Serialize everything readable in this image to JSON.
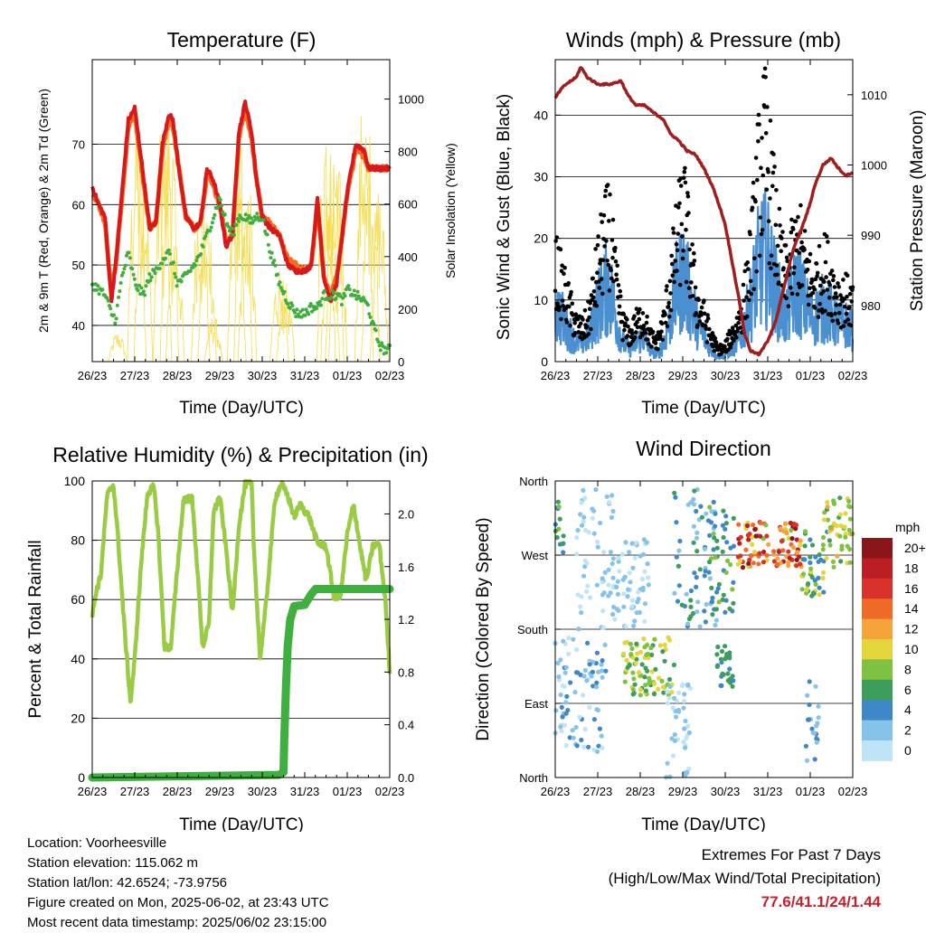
{
  "colors": {
    "temp2m": "#d7191c",
    "temp9m": "#f46d1f",
    "dewpoint": "#3fae3b",
    "solar": "#f5dc4a",
    "wind": "#4a90d0",
    "gust": "#000000",
    "pressure": "#a01e1e",
    "rh": "#99cc44",
    "precip": "#3fb03f"
  },
  "x_ticks": [
    "26/23",
    "27/23",
    "28/23",
    "29/23",
    "30/23",
    "31/23",
    "01/23",
    "02/23"
  ],
  "chart_data": [
    {
      "type": "line",
      "title": "Temperature (F)",
      "xlabel": "Time (Day/UTC)",
      "ylabel": "2m & 9m T (Red, Orange) & 2m Td (Green)",
      "y2label": "Solar Insolation (Yellow)",
      "ylim": [
        34,
        84
      ],
      "y_ticks": [
        "40",
        "50",
        "60",
        "70"
      ],
      "y2lim": [
        0,
        1150
      ],
      "y2_ticks": [
        "0",
        "200",
        "400",
        "600",
        "800",
        "1000"
      ],
      "grid": true,
      "x": [
        0,
        0.15,
        0.3,
        0.45,
        0.55,
        0.7,
        0.85,
        1.0,
        1.2,
        1.35,
        1.5,
        1.65,
        1.8,
        1.9,
        2.0,
        2.2,
        2.4,
        2.55,
        2.7,
        2.85,
        3.0,
        3.15,
        3.3,
        3.45,
        3.6,
        3.75,
        3.85,
        4.0,
        4.2,
        4.4,
        4.6,
        4.8,
        5.0,
        5.15,
        5.3,
        5.45,
        5.6,
        5.75,
        5.9,
        6.0,
        6.2,
        6.4,
        6.5,
        6.6,
        6.75,
        6.85,
        7.0
      ],
      "series": [
        {
          "name": "2m T",
          "values": [
            63,
            60,
            58,
            44,
            50,
            62,
            74,
            76,
            65,
            56,
            57,
            70,
            75,
            74,
            68,
            58,
            56,
            57,
            66,
            64,
            60,
            53,
            55,
            72,
            77,
            72,
            65,
            58,
            56,
            55,
            50,
            49,
            49,
            50,
            61,
            48,
            44,
            47,
            56,
            62,
            70,
            69,
            66,
            66,
            66,
            66,
            66
          ]
        },
        {
          "name": "9m T",
          "values": [
            62,
            60,
            57,
            45,
            50,
            61,
            73,
            75,
            64,
            56,
            57,
            69,
            74,
            73,
            68,
            58,
            56,
            57,
            65,
            63,
            60,
            54,
            55,
            71,
            76,
            71,
            65,
            58,
            57,
            55,
            51,
            50,
            49,
            50,
            60,
            48,
            45,
            48,
            56,
            62,
            69,
            68,
            66,
            66,
            66,
            66,
            66
          ]
        },
        {
          "name": "2m Td",
          "values": [
            47,
            46,
            45,
            42,
            41,
            48,
            52,
            47,
            45,
            48,
            49,
            51,
            52,
            50,
            47,
            48,
            50,
            52,
            55,
            58,
            61,
            57,
            55,
            58,
            58,
            57,
            58,
            58,
            52,
            47,
            44,
            42,
            42,
            43,
            43,
            45,
            45,
            45,
            44,
            46,
            45,
            44,
            43,
            40,
            37,
            36,
            36
          ]
        }
      ]
    },
    {
      "type": "line",
      "title": "Winds (mph) & Pressure (mb)",
      "xlabel": "Time (Day/UTC)",
      "ylabel": "Sonic Wind & Gust (Blue, Black)",
      "y2label": "Station Pressure (Maroon)",
      "ylim": [
        0,
        49
      ],
      "y_ticks": [
        "0",
        "10",
        "20",
        "30",
        "40"
      ],
      "y2lim": [
        972,
        1015
      ],
      "y2_ticks": [
        "980",
        "990",
        "1000",
        "1010"
      ],
      "grid": true,
      "pressure_x": [
        0,
        0.1,
        0.25,
        0.5,
        0.6,
        0.75,
        1.0,
        1.3,
        1.55,
        1.7,
        1.9,
        2.1,
        2.3,
        2.55,
        2.7,
        2.9,
        3.1,
        3.3,
        3.5,
        3.7,
        3.9,
        4.0,
        4.2,
        4.35,
        4.45,
        4.6,
        4.8,
        5.0,
        5.2,
        5.4,
        5.6,
        5.8,
        6.0,
        6.1,
        6.3,
        6.5,
        6.6,
        6.75,
        6.85,
        7.0
      ],
      "pressure_values": [
        1009.5,
        1010.5,
        1011.5,
        1012.5,
        1014,
        1012.5,
        1011.5,
        1011.5,
        1012,
        1010,
        1008.5,
        1008.5,
        1007.5,
        1006.5,
        1004.5,
        1003.5,
        1002,
        1001.5,
        999.5,
        997,
        993.5,
        991.5,
        985,
        980,
        976,
        973.5,
        973,
        975,
        978,
        983,
        988,
        991,
        994.5,
        997,
        1000,
        1001,
        1000,
        999,
        998.5,
        999
      ],
      "wind_base": [
        9,
        7,
        5,
        3,
        3,
        4,
        8,
        11,
        12,
        7,
        3,
        2,
        3,
        4,
        2,
        1,
        3,
        7,
        12,
        14,
        10,
        6,
        4,
        2,
        1,
        1,
        2,
        3,
        6,
        10,
        15,
        17,
        14,
        10,
        7,
        10,
        12,
        9,
        7,
        8,
        9,
        7,
        6,
        6,
        5
      ],
      "gust_base": [
        15,
        12,
        9,
        6,
        5,
        7,
        13,
        18,
        21,
        12,
        6,
        4,
        6,
        7,
        4,
        3,
        6,
        12,
        19,
        24,
        16,
        9,
        7,
        4,
        2,
        2,
        4,
        6,
        10,
        17,
        28,
        34,
        26,
        18,
        13,
        16,
        19,
        15,
        12,
        13,
        15,
        12,
        10,
        10,
        9
      ]
    },
    {
      "type": "line",
      "title": "Relative Humidity (%) & Precipitation (in)",
      "xlabel": "Time (Day/UTC)",
      "ylabel": "Percent & Total Rainfall",
      "ylim": [
        0,
        100
      ],
      "y_ticks": [
        "0",
        "20",
        "40",
        "60",
        "80",
        "100"
      ],
      "y2lim": [
        0,
        2.25
      ],
      "y2_ticks": [
        "0.0",
        "0.4",
        "0.8",
        "1.2",
        "1.6",
        "2.0"
      ],
      "grid": true,
      "rh_x": [
        0,
        0.08,
        0.2,
        0.35,
        0.5,
        0.6,
        0.75,
        0.9,
        1.0,
        1.15,
        1.3,
        1.45,
        1.55,
        1.7,
        1.85,
        2.0,
        2.15,
        2.35,
        2.45,
        2.6,
        2.75,
        2.85,
        3.0,
        3.15,
        3.3,
        3.45,
        3.6,
        3.75,
        3.8,
        3.95,
        4.1,
        4.3,
        4.45,
        4.6,
        4.75,
        4.9,
        5.1,
        5.3,
        5.5,
        5.7,
        5.85,
        6.0,
        6.15,
        6.3,
        6.45,
        6.6,
        6.75,
        6.9,
        7.0
      ],
      "rh_values": [
        54,
        62,
        68,
        95,
        99,
        82,
        52,
        25,
        40,
        72,
        96,
        98,
        83,
        44,
        44,
        70,
        94,
        94,
        75,
        44,
        52,
        89,
        95,
        77,
        55,
        85,
        99,
        99,
        78,
        40,
        60,
        94,
        99,
        95,
        88,
        92,
        88,
        79,
        78,
        60,
        62,
        82,
        92,
        78,
        66,
        78,
        79,
        59,
        36
      ],
      "precip_x": [
        0,
        4.4,
        4.5,
        4.52,
        4.56,
        4.6,
        4.66,
        4.75,
        5.0,
        5.15,
        5.25,
        7.0
      ],
      "precip_values": [
        0.0,
        0.02,
        0.04,
        0.3,
        0.7,
        1.0,
        1.2,
        1.3,
        1.31,
        1.39,
        1.43,
        1.43
      ]
    },
    {
      "type": "scatter",
      "title": "Wind Direction",
      "xlabel": "Time (Day/UTC)",
      "ylabel": "Direction (Colored By Speed)",
      "y_ticks": [
        "North",
        "East",
        "South",
        "West",
        "North"
      ],
      "ylim": [
        0,
        360
      ],
      "legend": {
        "title": "mph",
        "labels": [
          "0",
          "2",
          "4",
          "6",
          "8",
          "10",
          "12",
          "14",
          "16",
          "18",
          "20+"
        ],
        "colors": [
          "#bfe4f7",
          "#86c3ea",
          "#3f88c8",
          "#3d9e5c",
          "#7fc241",
          "#e3d53a",
          "#f5a43a",
          "#ef6a27",
          "#d9322a",
          "#bb1e24",
          "#8b1619"
        ],
        "placement": "right"
      },
      "clusters": [
        {
          "t0": 0.0,
          "t1": 0.2,
          "d0": 270,
          "d1": 340,
          "s0": 4,
          "s1": 8
        },
        {
          "t0": 0.0,
          "t1": 1.2,
          "d0": 30,
          "d1": 170,
          "s0": 0,
          "s1": 5
        },
        {
          "t0": 0.5,
          "t1": 1.4,
          "d0": 180,
          "d1": 350,
          "s0": 0,
          "s1": 3
        },
        {
          "t0": 1.6,
          "t1": 2.8,
          "d0": 100,
          "d1": 170,
          "s0": 5,
          "s1": 11
        },
        {
          "t0": 1.4,
          "t1": 2.2,
          "d0": 180,
          "d1": 290,
          "s0": 0,
          "s1": 3
        },
        {
          "t0": 2.6,
          "t1": 3.2,
          "d0": 0,
          "d1": 120,
          "s0": 0,
          "s1": 3
        },
        {
          "t0": 2.8,
          "t1": 3.8,
          "d0": 180,
          "d1": 350,
          "s0": 1,
          "s1": 6
        },
        {
          "t0": 3.6,
          "t1": 4.2,
          "d0": 200,
          "d1": 330,
          "s0": 3,
          "s1": 9
        },
        {
          "t0": 3.8,
          "t1": 4.2,
          "d0": 110,
          "d1": 160,
          "s0": 4,
          "s1": 7
        },
        {
          "t0": 4.3,
          "t1": 5.8,
          "d0": 255,
          "d1": 310,
          "s0": 8,
          "s1": 20
        },
        {
          "t0": 5.8,
          "t1": 6.4,
          "d0": 220,
          "d1": 300,
          "s0": 3,
          "s1": 10
        },
        {
          "t0": 6.3,
          "t1": 7.0,
          "d0": 255,
          "d1": 340,
          "s0": 6,
          "s1": 12
        },
        {
          "t0": 5.9,
          "t1": 6.2,
          "d0": 10,
          "d1": 120,
          "s0": 1,
          "s1": 4
        }
      ]
    }
  ],
  "footer": {
    "location": "Location: Voorheesville",
    "elevation": "Station elevation: 115.062 m",
    "latlon": "Station lat/lon: 42.6524; -73.9756",
    "created": "Figure created on Mon, 2025-06-02, at 23:43 UTC",
    "timestamp": "Most recent data timestamp: 2025/06/02 23:15:00",
    "extremes_title": "Extremes For Past 7 Days",
    "extremes_subtitle": "(High/Low/Max Wind/Total Precipitation)",
    "extremes_values": "77.6/41.1/24/1.44"
  }
}
